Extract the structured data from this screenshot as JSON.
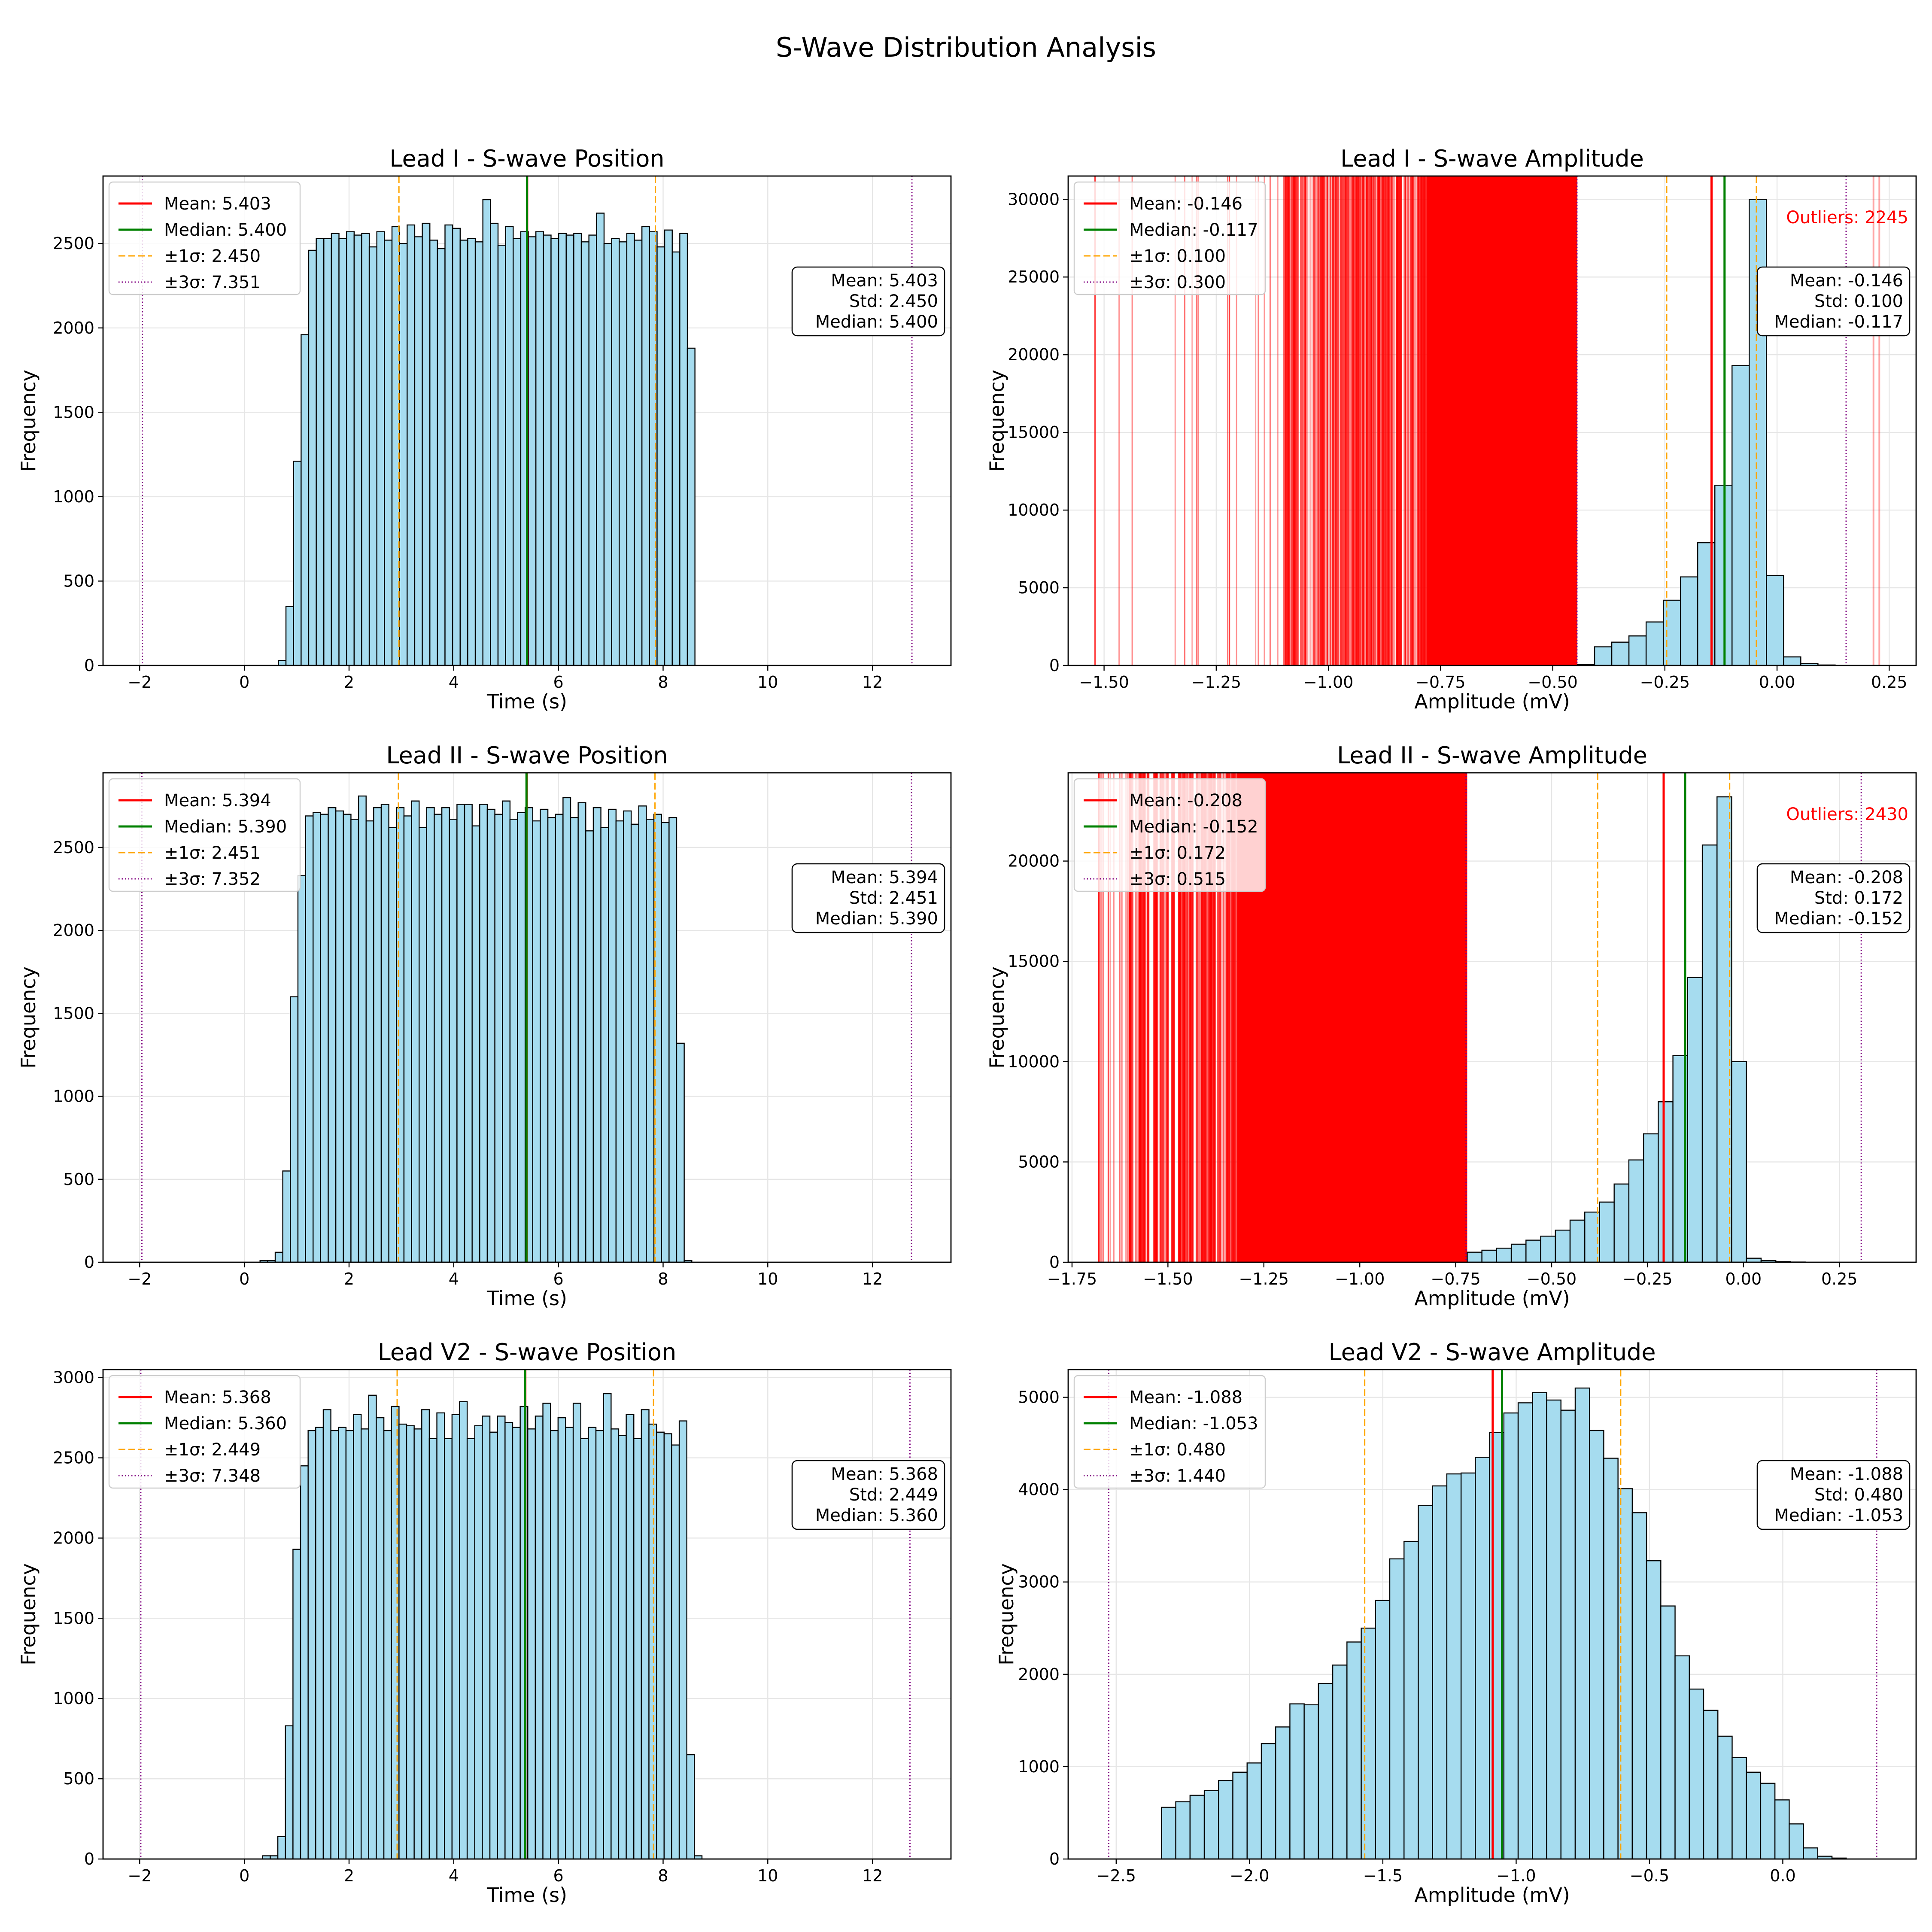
{
  "figure_title": "S-Wave Distribution Analysis",
  "colors": {
    "bar_fill": "#a6dcef",
    "bar_edge": "#000000",
    "mean": "#ff0000",
    "median": "#008000",
    "sigma1": "#ffa500",
    "sigma3": "#800080",
    "outlier": "#ff0000",
    "grid": "#e6e6e6"
  },
  "chart_data": [
    {
      "type": "bar",
      "title": "Lead I - S-wave Position",
      "xlabel": "Time (s)",
      "ylabel": "Frequency",
      "xlim": [
        -2.7,
        13.5
      ],
      "ylim": [
        0,
        2900
      ],
      "xticks": [
        -2,
        0,
        2,
        4,
        6,
        8,
        10,
        12
      ],
      "xtick_labels": [
        "−2",
        "0",
        "2",
        "4",
        "6",
        "8",
        "10",
        "12"
      ],
      "yticks": [
        0,
        500,
        1000,
        1500,
        2000,
        2500
      ],
      "ytick_labels": [
        "0",
        "500",
        "1000",
        "1500",
        "2000",
        "2500"
      ],
      "bin_start": 0.65,
      "bin_width": 0.1447,
      "values": [
        30,
        350,
        1210,
        1960,
        2460,
        2530,
        2530,
        2560,
        2530,
        2570,
        2550,
        2560,
        2480,
        2570,
        2520,
        2600,
        2500,
        2610,
        2540,
        2620,
        2520,
        2470,
        2610,
        2590,
        2520,
        2530,
        2510,
        2760,
        2620,
        2490,
        2600,
        2530,
        2570,
        2540,
        2570,
        2550,
        2530,
        2560,
        2550,
        2560,
        2510,
        2550,
        2680,
        2500,
        2530,
        2510,
        2560,
        2520,
        2600,
        2570,
        2480,
        2580,
        2450,
        2560,
        1880
      ],
      "mean": 5.403,
      "median": 5.4,
      "std": 2.45,
      "sigma1": [
        2.953,
        7.853
      ],
      "sigma3": [
        -1.948,
        12.754
      ],
      "legend": [
        "Mean: 5.403",
        "Median: 5.400",
        "±1σ: 2.450",
        "±3σ: 7.351"
      ],
      "stats": [
        "Mean: 5.403",
        "Std: 2.450",
        "Median: 5.400"
      ],
      "grid": true,
      "legend_position": "upper-left",
      "stats_position": "right"
    },
    {
      "type": "bar",
      "title": "Lead I - S-wave Amplitude",
      "xlabel": "Amplitude (mV)",
      "ylabel": "Frequency",
      "xlim": [
        -1.58,
        0.31
      ],
      "ylim": [
        0,
        31500
      ],
      "xticks": [
        -1.5,
        -1.25,
        -1.0,
        -0.75,
        -0.5,
        -0.25,
        0.0,
        0.25
      ],
      "xtick_labels": [
        "−1.50",
        "−1.25",
        "−1.00",
        "−0.75",
        "−0.50",
        "−0.25",
        "0.00",
        "0.25"
      ],
      "yticks": [
        0,
        5000,
        10000,
        15000,
        20000,
        25000,
        30000
      ],
      "ytick_labels": [
        "0",
        "5000",
        "10000",
        "15000",
        "20000",
        "25000",
        "30000"
      ],
      "bin_start": -0.445,
      "bin_width": 0.0383,
      "values": [
        60,
        1200,
        1500,
        1900,
        2800,
        4200,
        5700,
        7900,
        11600,
        19300,
        30000,
        5800,
        550,
        120,
        30
      ],
      "mean": -0.146,
      "median": -0.117,
      "std": 0.1,
      "sigma1": [
        -0.246,
        -0.046
      ],
      "sigma3": [
        -0.446,
        0.154
      ],
      "outliers_label": "Outliers: 2245",
      "outlier_region": [
        -1.52,
        -0.445
      ],
      "outlier_dense_start": -1.1,
      "outlier_solid_range": [
        -0.78,
        -0.445
      ],
      "outlier_extra": [
        0.215,
        0.228
      ],
      "legend": [
        "Mean: -0.146",
        "Median: -0.117",
        "±1σ: 0.100",
        "±3σ: 0.300"
      ],
      "stats": [
        "Mean: -0.146",
        "Std: 0.100",
        "Median: -0.117"
      ],
      "grid": true,
      "legend_position": "upper-left",
      "stats_position": "right"
    },
    {
      "type": "bar",
      "title": "Lead II - S-wave Position",
      "xlabel": "Time (s)",
      "ylabel": "Frequency",
      "xlim": [
        -2.7,
        13.5
      ],
      "ylim": [
        0,
        2950
      ],
      "xticks": [
        -2,
        0,
        2,
        4,
        6,
        8,
        10,
        12
      ],
      "xtick_labels": [
        "−2",
        "0",
        "2",
        "4",
        "6",
        "8",
        "10",
        "12"
      ],
      "yticks": [
        0,
        500,
        1000,
        1500,
        2000,
        2500
      ],
      "ytick_labels": [
        "0",
        "500",
        "1000",
        "1500",
        "2000",
        "2500"
      ],
      "bin_start": 0.3,
      "bin_width": 0.1447,
      "values": [
        10,
        10,
        60,
        550,
        1600,
        2330,
        2690,
        2710,
        2700,
        2740,
        2720,
        2700,
        2670,
        2810,
        2660,
        2740,
        2760,
        2620,
        2740,
        2690,
        2780,
        2620,
        2740,
        2700,
        2740,
        2670,
        2760,
        2760,
        2630,
        2760,
        2730,
        2700,
        2780,
        2670,
        2710,
        2740,
        2660,
        2730,
        2680,
        2700,
        2800,
        2680,
        2770,
        2600,
        2740,
        2620,
        2730,
        2660,
        2720,
        2640,
        2750,
        2670,
        2700,
        2650,
        2680,
        1320,
        10
      ],
      "mean": 5.394,
      "median": 5.39,
      "std": 2.451,
      "sigma1": [
        2.943,
        7.845
      ],
      "sigma3": [
        -1.958,
        12.746
      ],
      "legend": [
        "Mean: 5.394",
        "Median: 5.390",
        "±1σ: 2.451",
        "±3σ: 7.352"
      ],
      "stats": [
        "Mean: 5.394",
        "Std: 2.451",
        "Median: 5.390"
      ],
      "grid": true,
      "legend_position": "upper-left",
      "stats_position": "right"
    },
    {
      "type": "bar",
      "title": "Lead II - S-wave Amplitude",
      "xlabel": "Amplitude (mV)",
      "ylabel": "Frequency",
      "xlim": [
        -1.76,
        0.45
      ],
      "ylim": [
        0,
        24400
      ],
      "xticks": [
        -1.75,
        -1.5,
        -1.25,
        -1.0,
        -0.75,
        -0.5,
        -0.25,
        0.0,
        0.25
      ],
      "xtick_labels": [
        "−1.75",
        "−1.50",
        "−1.25",
        "−1.00",
        "−0.75",
        "−0.50",
        "−0.25",
        "0.00",
        "0.25"
      ],
      "yticks": [
        0,
        5000,
        10000,
        15000,
        20000
      ],
      "ytick_labels": [
        "0",
        "5000",
        "10000",
        "15000",
        "20000"
      ],
      "bin_start": -0.72,
      "bin_width": 0.0383,
      "values": [
        500,
        600,
        700,
        900,
        1100,
        1300,
        1600,
        2100,
        2500,
        3000,
        3900,
        5100,
        6400,
        8000,
        10300,
        14200,
        20800,
        23200,
        10000,
        200,
        80,
        30,
        10
      ],
      "mean": -0.208,
      "median": -0.152,
      "std": 0.172,
      "sigma1": [
        -0.38,
        -0.036
      ],
      "sigma3": [
        -0.723,
        0.307
      ],
      "outliers_label": "Outliers: 2430",
      "outlier_region": [
        -1.68,
        -0.72
      ],
      "outlier_dense_start": -1.6,
      "outlier_solid_range": [
        -1.32,
        -0.72
      ],
      "outlier_extra": [],
      "legend": [
        "Mean: -0.208",
        "Median: -0.152",
        "±1σ: 0.172",
        "±3σ: 0.515"
      ],
      "stats": [
        "Mean: -0.208",
        "Std: 0.172",
        "Median: -0.152"
      ],
      "grid": true,
      "legend_position": "upper-left",
      "stats_position": "right"
    },
    {
      "type": "bar",
      "title": "Lead V2 - S-wave Position",
      "xlabel": "Time (s)",
      "ylabel": "Frequency",
      "xlim": [
        -2.7,
        13.5
      ],
      "ylim": [
        0,
        3050
      ],
      "xticks": [
        -2,
        0,
        2,
        4,
        6,
        8,
        10,
        12
      ],
      "xtick_labels": [
        "−2",
        "0",
        "2",
        "4",
        "6",
        "8",
        "10",
        "12"
      ],
      "yticks": [
        0,
        500,
        1000,
        1500,
        2000,
        2500,
        3000
      ],
      "ytick_labels": [
        "0",
        "500",
        "1000",
        "1500",
        "2000",
        "2500",
        "3000"
      ],
      "bin_start": 0.35,
      "bin_width": 0.1447,
      "values": [
        20,
        20,
        140,
        830,
        1930,
        2450,
        2670,
        2690,
        2800,
        2670,
        2690,
        2670,
        2770,
        2680,
        2890,
        2750,
        2670,
        2820,
        2710,
        2700,
        2680,
        2800,
        2620,
        2780,
        2620,
        2770,
        2850,
        2620,
        2700,
        2760,
        2660,
        2760,
        2720,
        2690,
        2820,
        2680,
        2760,
        2840,
        2670,
        2750,
        2690,
        2840,
        2620,
        2690,
        2670,
        2900,
        2680,
        2640,
        2770,
        2620,
        2800,
        2710,
        2660,
        2650,
        2580,
        2730,
        650,
        20
      ],
      "mean": 5.368,
      "median": 5.36,
      "std": 2.449,
      "sigma1": [
        2.919,
        7.817
      ],
      "sigma3": [
        -1.979,
        12.716
      ],
      "legend": [
        "Mean: 5.368",
        "Median: 5.360",
        "±1σ: 2.449",
        "±3σ: 7.348"
      ],
      "stats": [
        "Mean: 5.368",
        "Std: 2.449",
        "Median: 5.360"
      ],
      "grid": true,
      "legend_position": "upper-left",
      "stats_position": "right"
    },
    {
      "type": "bar",
      "title": "Lead V2 - S-wave Amplitude",
      "xlabel": "Amplitude (mV)",
      "ylabel": "Frequency",
      "xlim": [
        -2.68,
        0.5
      ],
      "ylim": [
        0,
        5300
      ],
      "xticks": [
        -2.5,
        -2.0,
        -1.5,
        -1.0,
        -0.5,
        0.0
      ],
      "xtick_labels": [
        "−2.5",
        "−2.0",
        "−1.5",
        "−1.0",
        "−0.5",
        "0.0"
      ],
      "yticks": [
        0,
        1000,
        2000,
        3000,
        4000,
        5000
      ],
      "ytick_labels": [
        "0",
        "1000",
        "2000",
        "3000",
        "4000",
        "5000"
      ],
      "bin_start": -2.33,
      "bin_width": 0.0535,
      "values": [
        560,
        620,
        690,
        740,
        850,
        940,
        1040,
        1250,
        1430,
        1680,
        1670,
        1900,
        2100,
        2350,
        2500,
        2800,
        3250,
        3440,
        3830,
        4040,
        4170,
        4180,
        4350,
        4620,
        4830,
        4940,
        5050,
        4970,
        4860,
        5100,
        4640,
        4340,
        4010,
        3750,
        3230,
        2740,
        2200,
        1840,
        1610,
        1330,
        1100,
        940,
        820,
        640,
        380,
        120,
        30,
        10
      ],
      "mean": -1.088,
      "median": -1.053,
      "std": 0.48,
      "sigma1": [
        -1.568,
        -0.608
      ],
      "sigma3": [
        -2.528,
        0.352
      ],
      "legend": [
        "Mean: -1.088",
        "Median: -1.053",
        "±1σ: 0.480",
        "±3σ: 1.440"
      ],
      "stats": [
        "Mean: -1.088",
        "Std: 0.480",
        "Median: -1.053"
      ],
      "grid": true,
      "legend_position": "upper-left",
      "stats_position": "right"
    }
  ]
}
